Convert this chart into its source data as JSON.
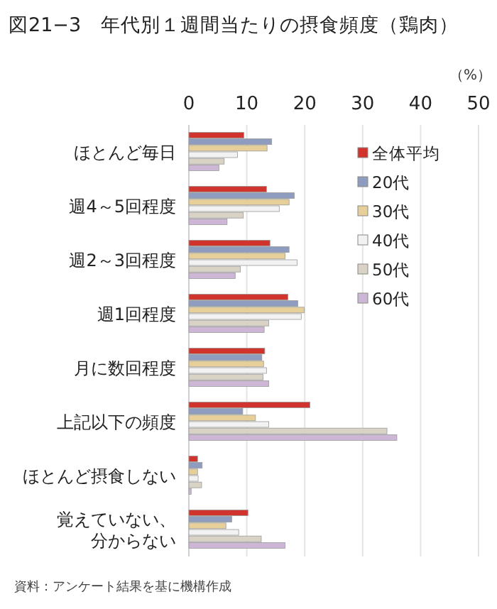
{
  "chart_data": {
    "type": "bar",
    "orientation": "horizontal",
    "title": "図21−3　年代別１週間当たりの摂食頻度（鶏肉）",
    "xlabel": "（%）",
    "categories": [
      "ほとんど毎日",
      "週4～5回程度",
      "週2～3回程度",
      "週1回程度",
      "月に数回程度",
      "上記以下の頻度",
      "ほとんど摂食しない",
      "覚えていない、分からない"
    ],
    "series": [
      {
        "name": "全体平均",
        "color": "#d0342c",
        "values": [
          9.5,
          13.4,
          14.0,
          17.1,
          13.1,
          20.9,
          1.5,
          10.2
        ]
      },
      {
        "name": "20代",
        "color": "#8e9dbf",
        "values": [
          14.3,
          18.2,
          17.3,
          18.8,
          12.6,
          9.3,
          2.3,
          7.4
        ]
      },
      {
        "name": "30代",
        "color": "#e6cf98",
        "values": [
          13.5,
          17.3,
          16.6,
          19.9,
          12.9,
          11.5,
          1.5,
          6.4
        ]
      },
      {
        "name": "40代",
        "color": "#f2f2f2",
        "values": [
          8.4,
          15.6,
          18.7,
          19.4,
          13.4,
          13.8,
          1.6,
          8.6
        ]
      },
      {
        "name": "50代",
        "color": "#d9d3c6",
        "values": [
          6.1,
          9.4,
          8.9,
          13.8,
          12.8,
          34.2,
          2.2,
          12.5
        ]
      },
      {
        "name": "60代",
        "color": "#cdb6d6",
        "values": [
          5.2,
          6.6,
          8.0,
          13.0,
          13.8,
          35.9,
          0.4,
          16.6
        ]
      }
    ],
    "xlim": [
      0,
      50
    ],
    "xticks": [
      0,
      10,
      20,
      30,
      40,
      50
    ],
    "grid": "x",
    "legend": "top right",
    "annotations": [
      "資料：アンケート結果を基に機構作成"
    ]
  }
}
